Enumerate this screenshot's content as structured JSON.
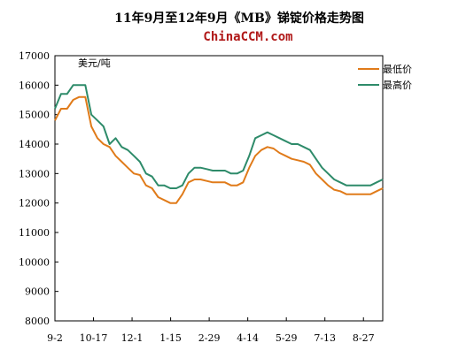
{
  "chart_data": {
    "type": "line",
    "title": "11年9月至12年9月《MB》锑锭价格走势图",
    "subtitle": "ChinaCCM.com",
    "unit_label": "美元/吨",
    "ylim": [
      8000,
      17000
    ],
    "yticks": [
      8000,
      9000,
      10000,
      11000,
      12000,
      13000,
      14000,
      15000,
      16000,
      17000
    ],
    "xticks": [
      "9-2",
      "10-17",
      "12-1",
      "1-15",
      "2-29",
      "4-14",
      "5-29",
      "7-13",
      "8-27"
    ],
    "x_count": 55,
    "legend_position": "top-right",
    "grid": false,
    "colors": {
      "low": "#e07b1a",
      "high": "#2e8b6a"
    },
    "series": [
      {
        "name": "最低价",
        "color": "#e07b1a",
        "values": [
          14800,
          15200,
          15200,
          15500,
          15600,
          15600,
          14600,
          14200,
          14000,
          13900,
          13600,
          13400,
          13200,
          13000,
          12950,
          12600,
          12500,
          12200,
          12100,
          12000,
          12000,
          12300,
          12700,
          12800,
          12800,
          12750,
          12700,
          12700,
          12700,
          12600,
          12600,
          12700,
          13200,
          13600,
          13800,
          13900,
          13850,
          13700,
          13600,
          13500,
          13450,
          13400,
          13300,
          13000,
          12800,
          12600,
          12450,
          12400,
          12300,
          12300,
          12300,
          12300,
          12300,
          12400,
          12500
        ]
      },
      {
        "name": "最高价",
        "color": "#2e8b6a",
        "values": [
          15200,
          15700,
          15700,
          16000,
          16000,
          16000,
          15000,
          14800,
          14600,
          14000,
          14200,
          13900,
          13800,
          13600,
          13400,
          13000,
          12900,
          12600,
          12600,
          12500,
          12500,
          12600,
          13000,
          13200,
          13200,
          13150,
          13100,
          13100,
          13100,
          13000,
          13000,
          13100,
          13600,
          14200,
          14300,
          14400,
          14300,
          14200,
          14100,
          14000,
          14000,
          13900,
          13800,
          13500,
          13200,
          13000,
          12800,
          12700,
          12600,
          12600,
          12600,
          12600,
          12600,
          12700,
          12800
        ]
      }
    ]
  }
}
